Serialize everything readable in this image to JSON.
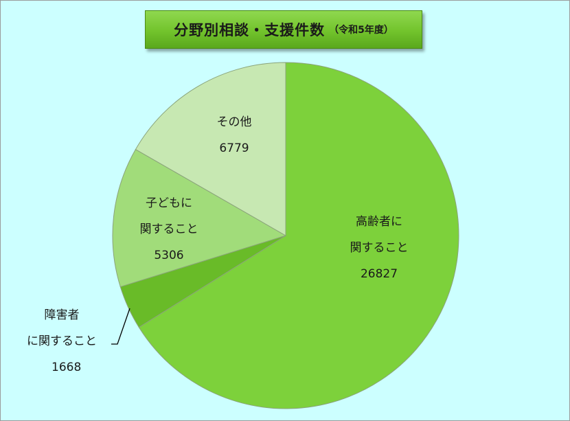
{
  "title": {
    "main": "分野別相談・支援件数",
    "sub": "（令和5年度）"
  },
  "chart_data": {
    "type": "pie",
    "start": "top",
    "direction": "clockwise",
    "slices": [
      {
        "name_lines": [
          "高齢者に",
          "関すること"
        ],
        "value": 26827,
        "value_label": "26827",
        "color": "#7dd13b"
      },
      {
        "name_lines": [
          "障害者",
          "に関すること"
        ],
        "value": 1668,
        "value_label": "1668",
        "color": "#69bb28"
      },
      {
        "name_lines": [
          "子どもに",
          "関すること"
        ],
        "value": 5306,
        "value_label": "5306",
        "color": "#a1dc7a"
      },
      {
        "name_lines": [
          "その他"
        ],
        "value": 6779,
        "value_label": "6779",
        "color": "#c7e8b2"
      }
    ]
  }
}
